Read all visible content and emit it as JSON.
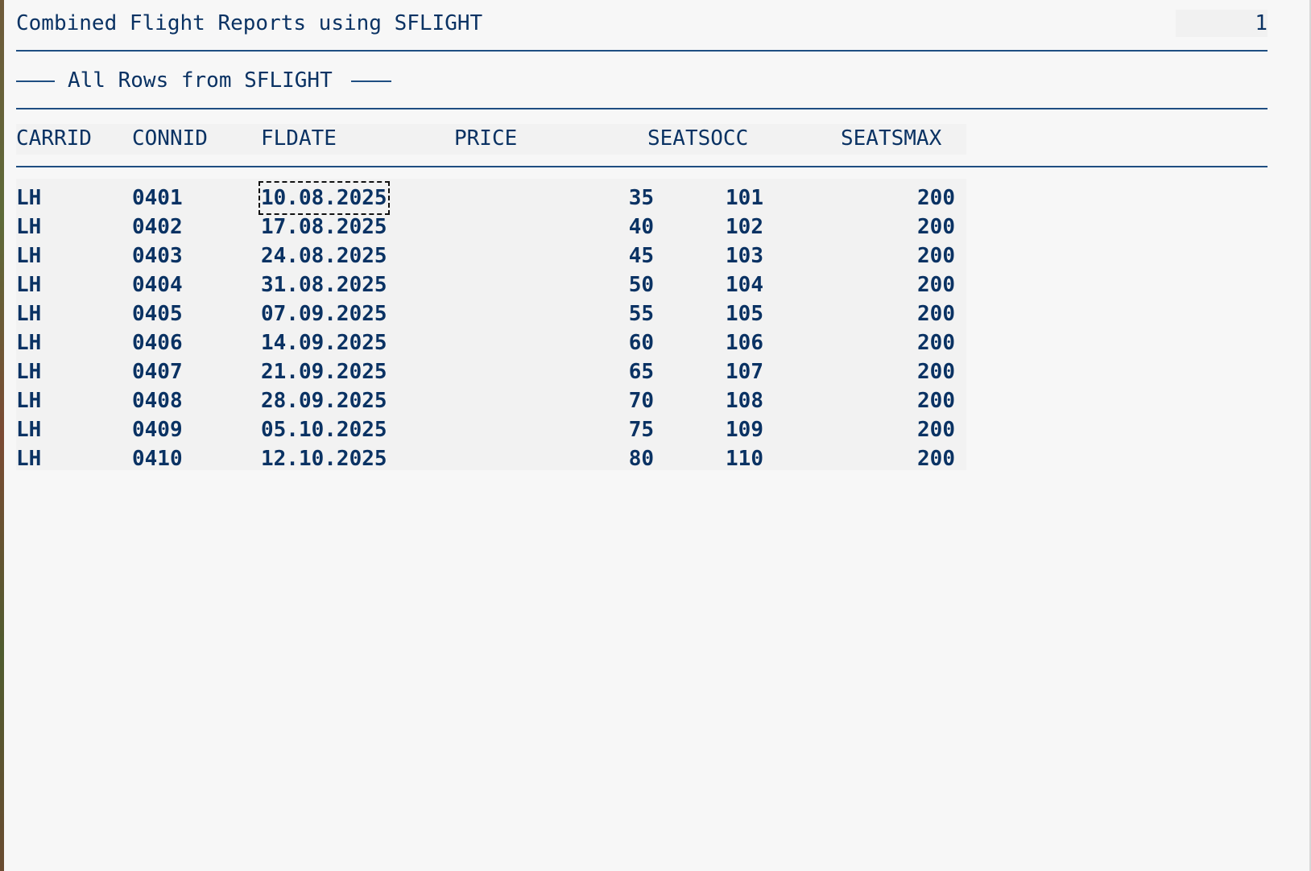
{
  "report": {
    "title": "Combined Flight Reports using SFLIGHT",
    "page_number": "1",
    "section_title": "All Rows from SFLIGHT"
  },
  "columns": [
    "CARRID",
    "CONNID",
    "FLDATE",
    "PRICE",
    "SEATSOCC",
    "SEATSMAX"
  ],
  "rows": [
    {
      "carrid": "LH",
      "connid": "0401",
      "fldate": "10.08.2025",
      "price": "35",
      "seatsocc": "101",
      "seatsmax": "200"
    },
    {
      "carrid": "LH",
      "connid": "0402",
      "fldate": "17.08.2025",
      "price": "40",
      "seatsocc": "102",
      "seatsmax": "200"
    },
    {
      "carrid": "LH",
      "connid": "0403",
      "fldate": "24.08.2025",
      "price": "45",
      "seatsocc": "103",
      "seatsmax": "200"
    },
    {
      "carrid": "LH",
      "connid": "0404",
      "fldate": "31.08.2025",
      "price": "50",
      "seatsocc": "104",
      "seatsmax": "200"
    },
    {
      "carrid": "LH",
      "connid": "0405",
      "fldate": "07.09.2025",
      "price": "55",
      "seatsocc": "105",
      "seatsmax": "200"
    },
    {
      "carrid": "LH",
      "connid": "0406",
      "fldate": "14.09.2025",
      "price": "60",
      "seatsocc": "106",
      "seatsmax": "200"
    },
    {
      "carrid": "LH",
      "connid": "0407",
      "fldate": "21.09.2025",
      "price": "65",
      "seatsocc": "107",
      "seatsmax": "200"
    },
    {
      "carrid": "LH",
      "connid": "0408",
      "fldate": "28.09.2025",
      "price": "70",
      "seatsocc": "108",
      "seatsmax": "200"
    },
    {
      "carrid": "LH",
      "connid": "0409",
      "fldate": "05.10.2025",
      "price": "75",
      "seatsocc": "109",
      "seatsmax": "200"
    },
    {
      "carrid": "LH",
      "connid": "0410",
      "fldate": "12.10.2025",
      "price": "80",
      "seatsocc": "110",
      "seatsmax": "200"
    }
  ],
  "focused_cell": "10.08.2025",
  "colors": {
    "text": "#0a3263",
    "rule": "#1f4e82",
    "background": "#f7f7f7"
  }
}
